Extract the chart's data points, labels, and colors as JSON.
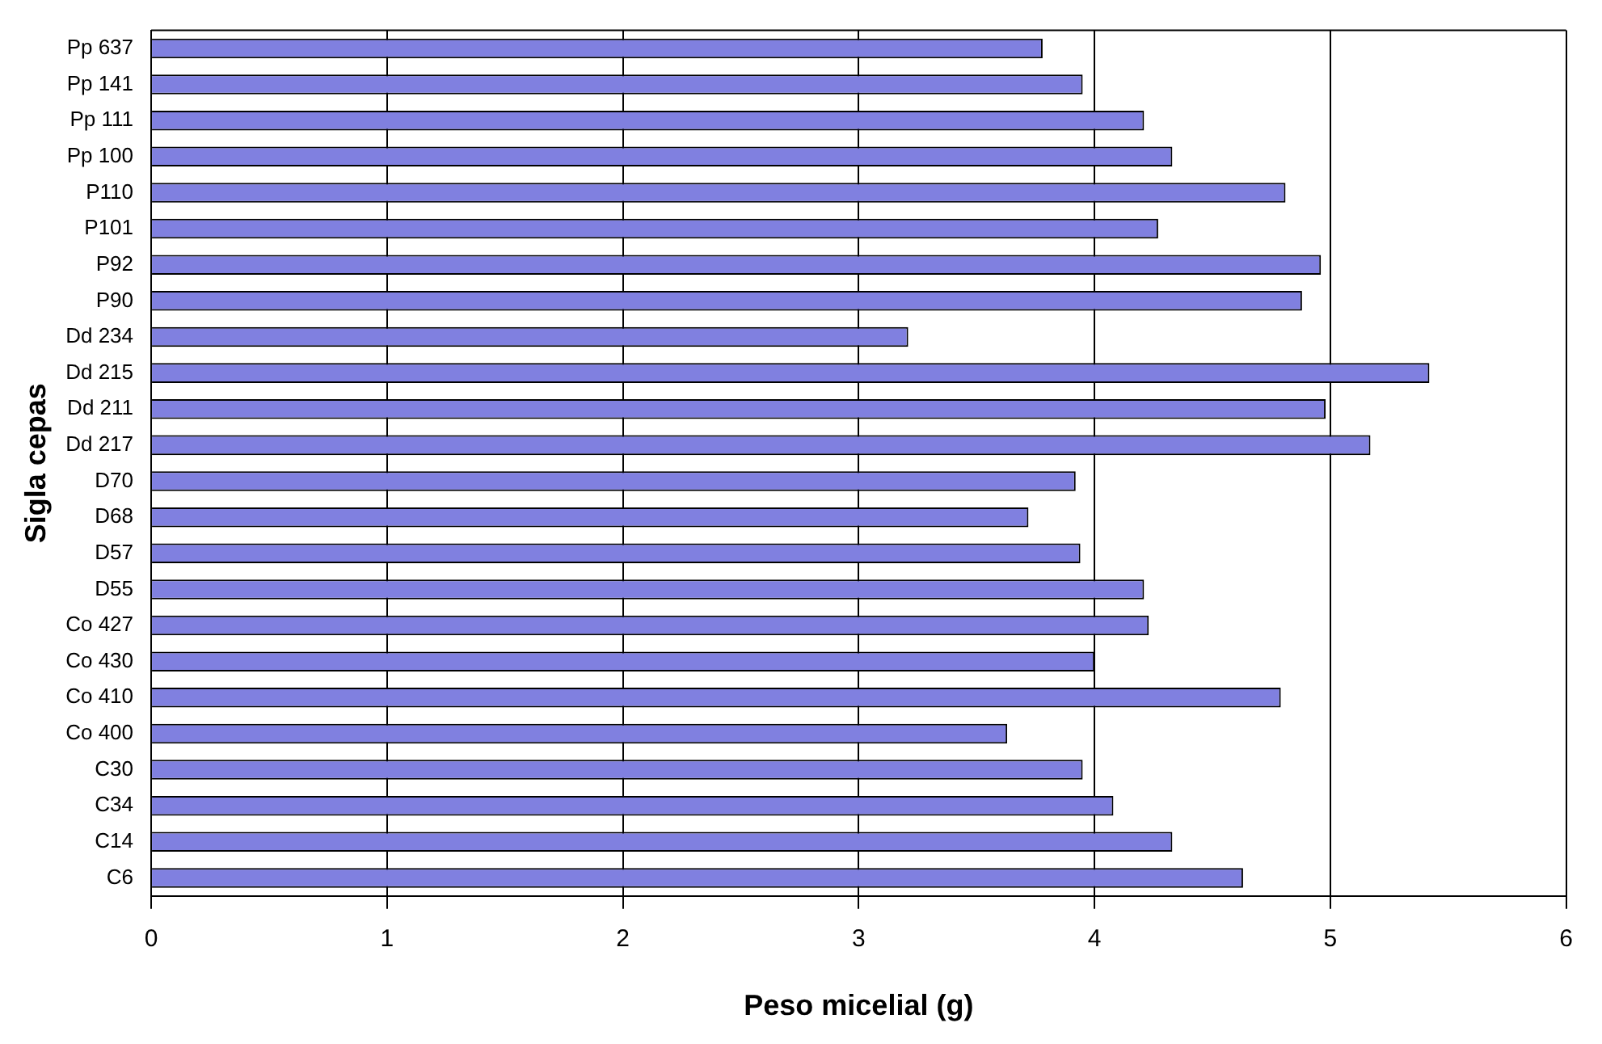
{
  "chart_data": {
    "type": "bar",
    "orientation": "horizontal",
    "xlabel": "Peso micelial (g)",
    "ylabel": "Sigla cepas",
    "categories": [
      "Pp 637",
      "Pp 141",
      "Pp 111",
      "Pp 100",
      "P110",
      "P101",
      "P92",
      "P90",
      "Dd 234",
      "Dd 215",
      "Dd 211",
      "Dd 217",
      "D70",
      "D68",
      "D57",
      "D55",
      "Co 427",
      "Co 430",
      "Co 410",
      "Co 400",
      "C30",
      "C34",
      "C14",
      "C6"
    ],
    "values": [
      3.78,
      3.95,
      4.21,
      4.33,
      4.81,
      4.27,
      4.96,
      4.88,
      3.21,
      5.42,
      4.98,
      5.17,
      3.92,
      3.72,
      3.94,
      4.21,
      4.23,
      4.0,
      4.79,
      3.63,
      3.95,
      4.08,
      4.33,
      4.63
    ],
    "color": "#8080e0",
    "xlim": [
      0,
      6
    ],
    "xticks": [
      0,
      1,
      2,
      3,
      4,
      5,
      6
    ],
    "grid": "x",
    "legend": false
  }
}
